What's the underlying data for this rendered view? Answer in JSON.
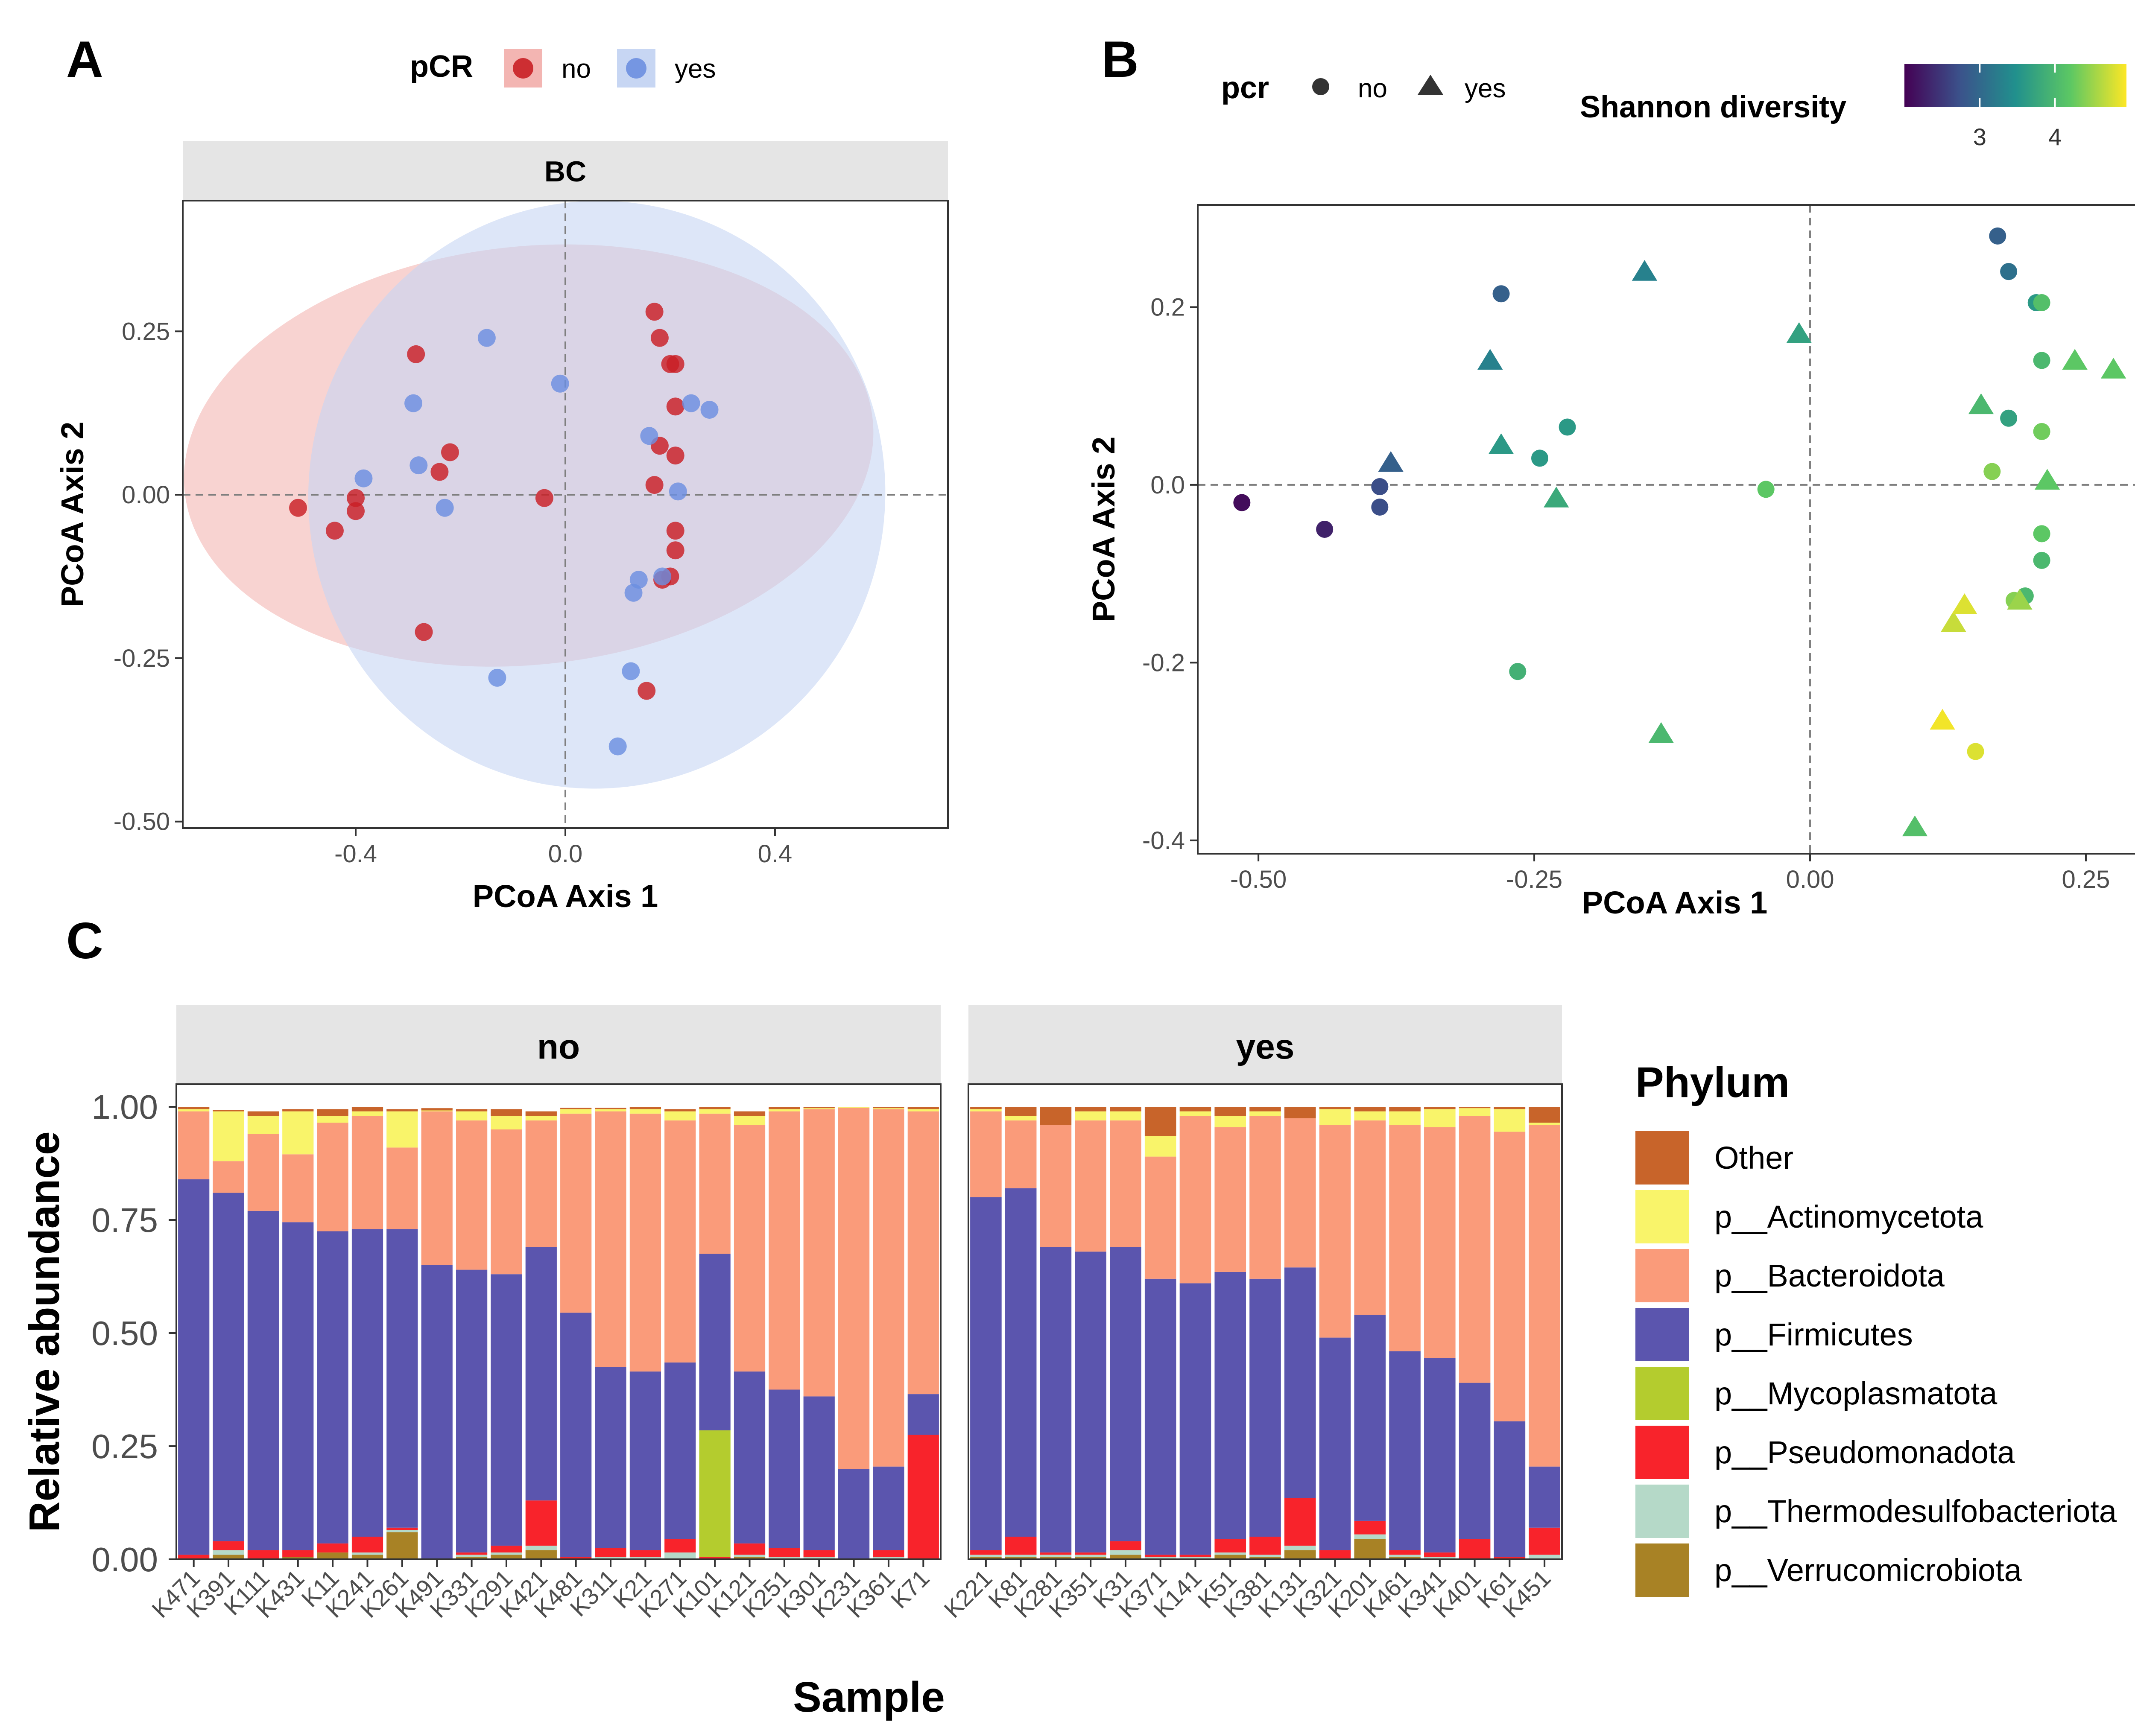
{
  "panels": {
    "a": "A",
    "b": "B",
    "c": "C"
  },
  "chart_data": [
    {
      "id": "A",
      "type": "scatter",
      "strip": "BC",
      "xlabel": "PCoA Axis 1",
      "ylabel": "PCoA Axis 2",
      "xlim": [
        -0.73,
        0.73
      ],
      "ylim": [
        -0.51,
        0.45
      ],
      "xticks": [
        -0.4,
        0.0,
        0.4
      ],
      "xtick_labels": [
        "-0.4",
        "0.0",
        "0.4"
      ],
      "yticks": [
        -0.5,
        -0.25,
        0.0,
        0.25
      ],
      "ytick_labels": [
        "-0.50",
        "-0.25",
        "0.00",
        "0.25"
      ],
      "legend_title": "pCR",
      "groups": [
        {
          "name": "no",
          "color": "#c91f24",
          "ellipse": {
            "cx": -0.07,
            "cy": 0.06,
            "rx": 0.66,
            "ry": 0.32,
            "angle": 6
          },
          "points": [
            [
              -0.51,
              -0.02
            ],
            [
              -0.44,
              -0.055
            ],
            [
              -0.4,
              -0.005
            ],
            [
              -0.4,
              -0.025
            ],
            [
              -0.285,
              0.215
            ],
            [
              -0.24,
              0.035
            ],
            [
              -0.22,
              0.065
            ],
            [
              -0.27,
              -0.21
            ],
            [
              -0.04,
              -0.005
            ],
            [
              0.17,
              0.28
            ],
            [
              0.18,
              0.24
            ],
            [
              0.2,
              0.2
            ],
            [
              0.21,
              0.2
            ],
            [
              0.21,
              0.135
            ],
            [
              0.18,
              0.075
            ],
            [
              0.21,
              0.06
            ],
            [
              0.17,
              0.015
            ],
            [
              0.21,
              -0.055
            ],
            [
              0.21,
              -0.085
            ],
            [
              0.2,
              -0.125
            ],
            [
              0.185,
              -0.13
            ],
            [
              0.155,
              -0.3
            ]
          ]
        },
        {
          "name": "yes",
          "color": "#6b8fe0",
          "ellipse": {
            "cx": 0.06,
            "cy": 0.0,
            "rx": 0.55,
            "ry": 0.45,
            "angle": -12
          },
          "points": [
            [
              -0.385,
              0.025
            ],
            [
              -0.29,
              0.14
            ],
            [
              -0.28,
              0.045
            ],
            [
              -0.23,
              -0.02
            ],
            [
              -0.15,
              0.24
            ],
            [
              -0.13,
              -0.28
            ],
            [
              -0.01,
              0.17
            ],
            [
              0.1,
              -0.385
            ],
            [
              0.125,
              -0.27
            ],
            [
              0.13,
              -0.15
            ],
            [
              0.14,
              -0.13
            ],
            [
              0.16,
              0.09
            ],
            [
              0.185,
              -0.125
            ],
            [
              0.24,
              0.14
            ],
            [
              0.275,
              0.13
            ],
            [
              0.215,
              0.005
            ]
          ]
        }
      ]
    },
    {
      "id": "B",
      "type": "scatter",
      "xlabel": "PCoA Axis 1",
      "ylabel": "PCoA Axis 2",
      "xlim": [
        -0.555,
        0.31
      ],
      "ylim": [
        -0.415,
        0.315
      ],
      "xticks": [
        -0.5,
        -0.25,
        0.0,
        0.25
      ],
      "xtick_labels": [
        "-0.50",
        "-0.25",
        "0.00",
        "0.25"
      ],
      "yticks": [
        -0.4,
        -0.2,
        0.0,
        0.2
      ],
      "ytick_labels": [
        "-0.4",
        "-0.2",
        "0.0",
        "0.2"
      ],
      "shape_legend_title": "pcr",
      "shape_legend": [
        "no",
        "yes"
      ],
      "color_legend_title": "Shannon diversity",
      "color_range": [
        2.0,
        4.95
      ],
      "color_ticks": [
        3,
        4
      ],
      "color_tick_labels": [
        "3",
        "4"
      ],
      "points_no": [
        [
          -0.515,
          -0.02,
          2.1
        ],
        [
          -0.44,
          -0.05,
          2.3
        ],
        [
          -0.39,
          -0.002,
          2.7
        ],
        [
          -0.39,
          -0.025,
          2.7
        ],
        [
          -0.28,
          0.215,
          2.9
        ],
        [
          -0.22,
          0.065,
          3.6
        ],
        [
          -0.245,
          0.03,
          3.6
        ],
        [
          -0.265,
          -0.21,
          3.9
        ],
        [
          -0.04,
          -0.005,
          4.2
        ],
        [
          0.17,
          0.28,
          2.9
        ],
        [
          0.18,
          0.24,
          3.1
        ],
        [
          0.205,
          0.205,
          3.6
        ],
        [
          0.21,
          0.205,
          4.1
        ],
        [
          0.21,
          0.14,
          4.0
        ],
        [
          0.18,
          0.075,
          3.7
        ],
        [
          0.21,
          0.06,
          4.3
        ],
        [
          0.165,
          0.015,
          4.4
        ],
        [
          0.21,
          -0.055,
          4.2
        ],
        [
          0.21,
          -0.085,
          4.0
        ],
        [
          0.195,
          -0.125,
          4.0
        ],
        [
          0.185,
          -0.13,
          4.4
        ],
        [
          0.15,
          -0.3,
          4.8
        ]
      ],
      "points_yes": [
        [
          -0.38,
          0.025,
          2.9
        ],
        [
          -0.29,
          0.14,
          3.3
        ],
        [
          -0.28,
          0.045,
          3.6
        ],
        [
          -0.23,
          -0.015,
          3.8
        ],
        [
          -0.15,
          0.24,
          3.3
        ],
        [
          -0.135,
          -0.28,
          4.0
        ],
        [
          -0.01,
          0.17,
          3.7
        ],
        [
          0.095,
          -0.385,
          4.1
        ],
        [
          0.12,
          -0.265,
          4.9
        ],
        [
          0.13,
          -0.155,
          4.7
        ],
        [
          0.14,
          -0.135,
          4.8
        ],
        [
          0.155,
          0.09,
          4.0
        ],
        [
          0.19,
          -0.13,
          4.5
        ],
        [
          0.24,
          0.14,
          4.2
        ],
        [
          0.275,
          0.13,
          4.2
        ],
        [
          0.215,
          0.005,
          4.2
        ]
      ]
    },
    {
      "id": "C",
      "type": "bar",
      "stacked": true,
      "xlabel": "Sample",
      "ylabel": "Relative abundance",
      "ylim": [
        0,
        1.05
      ],
      "yticks": [
        0.0,
        0.25,
        0.5,
        0.75,
        1.0
      ],
      "ytick_labels": [
        "0.00",
        "0.25",
        "0.50",
        "0.75",
        "1.00"
      ],
      "legend_title": "Phylum",
      "phyla": [
        "Other",
        "p__Actinomycetota",
        "p__Bacteroidota",
        "p__Firmicutes",
        "p__Mycoplasmatota",
        "p__Pseudomonadota",
        "p__Thermodesulfobacteriota",
        "p__Verrucomicrobiota"
      ],
      "stack_order": [
        "p__Verrucomicrobiota",
        "p__Thermodesulfobacteriota",
        "p__Pseudomonadota",
        "p__Mycoplasmatota",
        "p__Firmicutes",
        "p__Bacteroidota",
        "p__Actinomycetota",
        "Other"
      ],
      "colors": {
        "Other": "#c8642a",
        "p__Actinomycetota": "#f9f46a",
        "p__Bacteroidota": "#fa9b7a",
        "p__Firmicutes": "#5b55ae",
        "p__Mycoplasmatota": "#b4cc2e",
        "p__Pseudomonadota": "#f8232b",
        "p__Thermodesulfobacteriota": "#b5d9c8",
        "p__Verrucomicrobiota": "#a88225"
      },
      "facets": [
        {
          "label": "no",
          "samples": [
            {
              "name": "K471",
              "values": [
                0.005,
                0.005,
                0.15,
                0.83,
                0,
                0.01,
                0,
                0
              ]
            },
            {
              "name": "K391",
              "values": [
                0.003,
                0.11,
                0.07,
                0.77,
                0,
                0.02,
                0.01,
                0.01
              ]
            },
            {
              "name": "K111",
              "values": [
                0.01,
                0.04,
                0.17,
                0.75,
                0,
                0.02,
                0,
                0
              ]
            },
            {
              "name": "K431",
              "values": [
                0.005,
                0.095,
                0.15,
                0.725,
                0,
                0.015,
                0,
                0.005
              ]
            },
            {
              "name": "K11",
              "values": [
                0.015,
                0.015,
                0.24,
                0.69,
                0,
                0.02,
                0,
                0.015
              ]
            },
            {
              "name": "K241",
              "values": [
                0.01,
                0.01,
                0.25,
                0.68,
                0,
                0.035,
                0.005,
                0.01
              ]
            },
            {
              "name": "K261",
              "values": [
                0.005,
                0.08,
                0.18,
                0.66,
                0,
                0.005,
                0.005,
                0.06
              ]
            },
            {
              "name": "K491",
              "values": [
                0.005,
                0.002,
                0.34,
                0.65,
                0,
                0,
                0,
                0
              ]
            },
            {
              "name": "K331",
              "values": [
                0.005,
                0.02,
                0.33,
                0.625,
                0,
                0.005,
                0.005,
                0.005
              ]
            },
            {
              "name": "K291",
              "values": [
                0.015,
                0.03,
                0.32,
                0.6,
                0,
                0.015,
                0.005,
                0.01
              ]
            },
            {
              "name": "K421",
              "values": [
                0.01,
                0.01,
                0.28,
                0.56,
                0,
                0.1,
                0.01,
                0.02
              ]
            },
            {
              "name": "K481",
              "values": [
                0.003,
                0.01,
                0.44,
                0.54,
                0,
                0.005,
                0,
                0
              ]
            },
            {
              "name": "K311",
              "values": [
                0.003,
                0.005,
                0.565,
                0.4,
                0,
                0.02,
                0.005,
                0
              ]
            },
            {
              "name": "K21",
              "values": [
                0.005,
                0.01,
                0.57,
                0.395,
                0,
                0.015,
                0.005,
                0
              ]
            },
            {
              "name": "K271",
              "values": [
                0.005,
                0.02,
                0.535,
                0.39,
                0,
                0.03,
                0.015,
                0
              ]
            },
            {
              "name": "K101",
              "values": [
                0.005,
                0.01,
                0.31,
                0.39,
                0.28,
                0.005,
                0,
                0
              ]
            },
            {
              "name": "K121",
              "values": [
                0.01,
                0.02,
                0.545,
                0.38,
                0,
                0.025,
                0.005,
                0.005
              ]
            },
            {
              "name": "K251",
              "values": [
                0.005,
                0.005,
                0.615,
                0.35,
                0,
                0.02,
                0.005,
                0
              ]
            },
            {
              "name": "K301",
              "values": [
                0.003,
                0.002,
                0.635,
                0.34,
                0,
                0.015,
                0.005,
                0
              ]
            },
            {
              "name": "K231",
              "values": [
                0.001,
                0.001,
                0.798,
                0.2,
                0,
                0,
                0,
                0
              ]
            },
            {
              "name": "K361",
              "values": [
                0.003,
                0.002,
                0.79,
                0.185,
                0,
                0.015,
                0.005,
                0
              ]
            },
            {
              "name": "K71",
              "values": [
                0.005,
                0.005,
                0.625,
                0.09,
                0,
                0.275,
                0,
                0
              ]
            }
          ]
        },
        {
          "label": "yes",
          "samples": [
            {
              "name": "K221",
              "values": [
                0.005,
                0.005,
                0.19,
                0.78,
                0,
                0.01,
                0.005,
                0.005
              ]
            },
            {
              "name": "K81",
              "values": [
                0.02,
                0.01,
                0.15,
                0.77,
                0,
                0.04,
                0.005,
                0.005
              ]
            },
            {
              "name": "K281",
              "values": [
                0.04,
                0.0,
                0.27,
                0.675,
                0,
                0.005,
                0.005,
                0.005
              ]
            },
            {
              "name": "K351",
              "values": [
                0.01,
                0.02,
                0.29,
                0.665,
                0,
                0.005,
                0.005,
                0.005
              ]
            },
            {
              "name": "K31",
              "values": [
                0.01,
                0.02,
                0.28,
                0.65,
                0,
                0.02,
                0.01,
                0.01
              ]
            },
            {
              "name": "K371",
              "values": [
                0.065,
                0.045,
                0.27,
                0.61,
                0,
                0.005,
                0.005,
                0
              ]
            },
            {
              "name": "K141",
              "values": [
                0.01,
                0.01,
                0.37,
                0.6,
                0,
                0.005,
                0.005,
                0
              ]
            },
            {
              "name": "K51",
              "values": [
                0.02,
                0.025,
                0.32,
                0.59,
                0,
                0.03,
                0.005,
                0.01
              ]
            },
            {
              "name": "K381",
              "values": [
                0.01,
                0.01,
                0.36,
                0.57,
                0,
                0.04,
                0.005,
                0.005
              ]
            },
            {
              "name": "K131",
              "values": [
                0.025,
                0.0,
                0.33,
                0.51,
                0,
                0.105,
                0.01,
                0.02
              ]
            },
            {
              "name": "K321",
              "values": [
                0.005,
                0.035,
                0.47,
                0.47,
                0,
                0.02,
                0,
                0
              ]
            },
            {
              "name": "K201",
              "values": [
                0.01,
                0.02,
                0.43,
                0.455,
                0,
                0.03,
                0.01,
                0.045
              ]
            },
            {
              "name": "K461",
              "values": [
                0.01,
                0.03,
                0.5,
                0.44,
                0,
                0.01,
                0.005,
                0.005
              ]
            },
            {
              "name": "K341",
              "values": [
                0.005,
                0.04,
                0.51,
                0.43,
                0,
                0.01,
                0.005,
                0
              ]
            },
            {
              "name": "K401",
              "values": [
                0.003,
                0.017,
                0.59,
                0.345,
                0,
                0.045,
                0,
                0
              ]
            },
            {
              "name": "K61",
              "values": [
                0.005,
                0.05,
                0.64,
                0.3,
                0,
                0.005,
                0,
                0
              ]
            },
            {
              "name": "K451",
              "values": [
                0.035,
                0.005,
                0.755,
                0.135,
                0,
                0.06,
                0.01,
                0
              ]
            }
          ]
        }
      ]
    }
  ]
}
